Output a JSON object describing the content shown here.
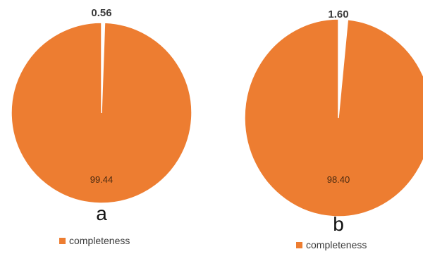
{
  "colors": {
    "slice": "#ed7d31",
    "gap": "#ffffff",
    "text": "#3b3b3b"
  },
  "chart_data": [
    {
      "type": "pie",
      "panel": "a",
      "slices": [
        {
          "label": "0.56",
          "value": 0.56,
          "color": "#ffffff"
        },
        {
          "label": "99.44",
          "value": 99.44,
          "color": "#ed7d31"
        }
      ],
      "legend": [
        "completeness"
      ],
      "legend_placement": "bottom"
    },
    {
      "type": "pie",
      "panel": "b",
      "slices": [
        {
          "label": "1.60",
          "value": 1.6,
          "color": "#ffffff"
        },
        {
          "label": "98.40",
          "value": 98.4,
          "color": "#ed7d31"
        }
      ],
      "legend": [
        "completeness"
      ],
      "legend_placement": "bottom"
    }
  ]
}
